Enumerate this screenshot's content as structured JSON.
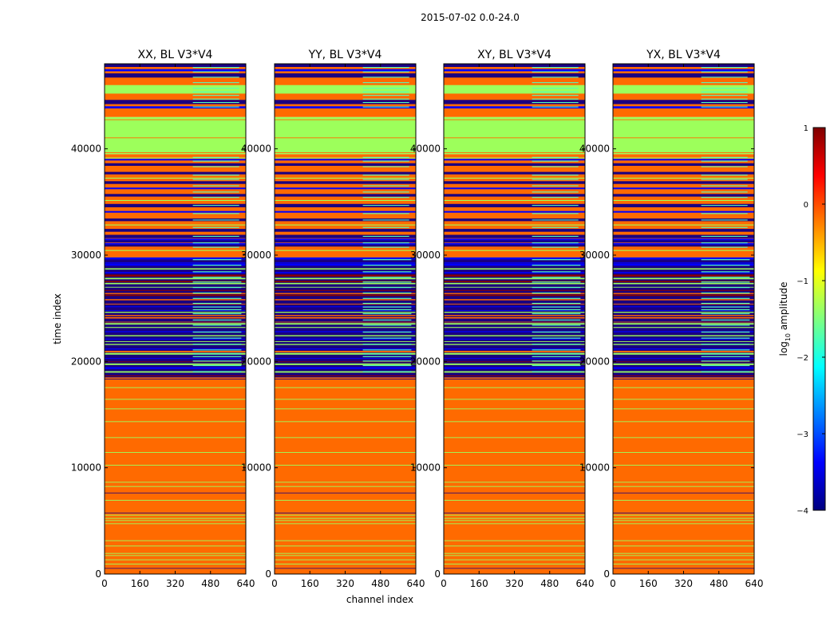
{
  "figure": {
    "suptitle": "2015-07-02 0.0-24.0",
    "ylabel": "time index",
    "xlabel": "channel index",
    "colorbar_label_main": "log",
    "colorbar_label_sub": "10",
    "colorbar_label_tail": " amplitude"
  },
  "chart_data": {
    "type": "heatmap",
    "panels": [
      {
        "title": "XX, BL V3*V4",
        "polarization": "XX",
        "baseline": "V3*V4"
      },
      {
        "title": "YY, BL V3*V4",
        "polarization": "YY",
        "baseline": "V3*V4"
      },
      {
        "title": "XY, BL V3*V4",
        "polarization": "XY",
        "baseline": "V3*V4"
      },
      {
        "title": "YX, BL V3*V4",
        "polarization": "YX",
        "baseline": "V3*V4"
      }
    ],
    "x": {
      "label": "channel index",
      "range": [
        0,
        640
      ],
      "ticks": [
        0,
        160,
        320,
        480,
        640
      ]
    },
    "y": {
      "label": "time index",
      "range": [
        0,
        48000
      ],
      "ticks": [
        0,
        10000,
        20000,
        30000,
        40000
      ]
    },
    "colorbar": {
      "label": "log10 amplitude",
      "range": [
        -4,
        1
      ],
      "ticks": [
        1,
        0,
        -1,
        -2,
        -3,
        -4
      ],
      "colormap": "jet",
      "stops": [
        "#00007f",
        "#0000ff",
        "#007fff",
        "#00ffff",
        "#7fff7f",
        "#ffff00",
        "#ff7f00",
        "#ff0000",
        "#7f0000"
      ]
    },
    "colors": {
      "level_flat": "#ff6a00",
      "level_low_flagged": "#9dff5b",
      "level_dark": "#1a0080",
      "level_blue": "#0000ff",
      "level_cyan": "#55ffbb",
      "level_red": "#8b0000"
    },
    "regions": [
      {
        "from": 0,
        "to": 18500,
        "level": "flat",
        "description": "orange uniform with thin yellow-green lines"
      },
      {
        "from": 18500,
        "to": 29800,
        "level": "noisy",
        "description": "dark purple noise with cyan channel blocks 400-620"
      },
      {
        "from": 29800,
        "to": 39500,
        "level": "mixed",
        "description": "orange bands with dark/blue stripes"
      },
      {
        "from": 39500,
        "to": 43000,
        "level": "low_flagged",
        "description": "green band"
      },
      {
        "from": 43000,
        "to": 48000,
        "level": "mixed",
        "description": "orange/green/blue bands"
      }
    ]
  }
}
